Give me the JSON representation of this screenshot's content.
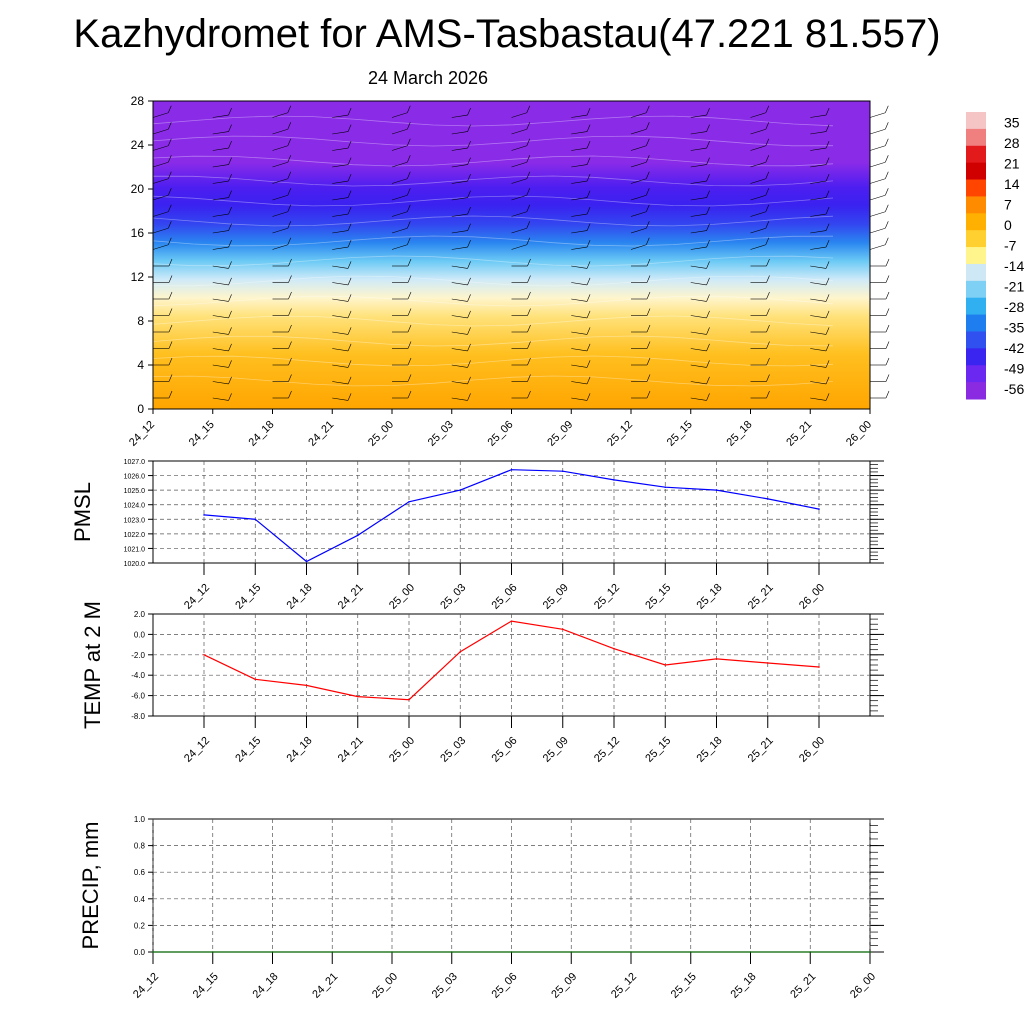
{
  "title": "Kazhydromet for AMS-Tasbastau(47.221 81.557)",
  "subtitle": "24 March 2026",
  "chart_data": [
    {
      "type": "heatmap",
      "name": "vertical cross-section (temperature contours with wind barbs)",
      "categories": [
        "24_12",
        "24_15",
        "24_18",
        "24_21",
        "25_00",
        "25_03",
        "25_06",
        "25_09",
        "25_12",
        "25_15",
        "25_18",
        "25_21",
        "26_00"
      ],
      "ylim": [
        0,
        28
      ],
      "yticks": [
        0,
        4,
        8,
        12,
        16,
        20,
        24,
        28
      ],
      "colorbar": {
        "labels": [
          "35",
          "28",
          "21",
          "14",
          "7",
          "0",
          "-7",
          "-14",
          "-21",
          "-28",
          "-35",
          "-42",
          "-49",
          "-56"
        ],
        "colors": [
          "#f5c4c4",
          "#f08080",
          "#e31a1c",
          "#d00000",
          "#ff4500",
          "#ff8c00",
          "#ffb000",
          "#ffd030",
          "#fff58c",
          "#cfe8f5",
          "#7fd0f5",
          "#30b0f0",
          "#1e7ef0",
          "#3050f0",
          "#3a24f0",
          "#6a28f0",
          "#8a2be2"
        ]
      }
    },
    {
      "type": "line",
      "name": "PMSL",
      "ylabel": "PMSL",
      "categories": [
        "24_12",
        "24_15",
        "24_18",
        "24_21",
        "25_00",
        "25_03",
        "25_06",
        "25_09",
        "25_12",
        "25_15",
        "25_18",
        "25_21",
        "26_00"
      ],
      "values": [
        1023.3,
        1023.0,
        1020.1,
        1021.9,
        1024.2,
        1025.0,
        1026.4,
        1026.3,
        1025.7,
        1025.2,
        1025.0,
        1024.4,
        1023.7
      ],
      "ylim": [
        1020.0,
        1027.0
      ],
      "ytick_labels": [
        "1020.0",
        "1021.0",
        "1022.0",
        "1023.0",
        "1024.0",
        "1025.0",
        "1026.0",
        "1027.0"
      ],
      "color": "#0000ff"
    },
    {
      "type": "line",
      "name": "TEMP at 2 M",
      "ylabel": "TEMP at 2 M",
      "categories": [
        "24_12",
        "24_15",
        "24_18",
        "24_21",
        "25_00",
        "25_03",
        "25_06",
        "25_09",
        "25_12",
        "25_15",
        "25_18",
        "25_21",
        "26_00"
      ],
      "values": [
        -2.0,
        -4.4,
        -5.0,
        -6.1,
        -6.4,
        -1.7,
        1.3,
        0.5,
        -1.4,
        -3.0,
        -2.4,
        -2.8,
        -3.2
      ],
      "ylim": [
        -8.0,
        2.0
      ],
      "ytick_labels": [
        "-8.0",
        "-6.0",
        "-4.0",
        "-2.0",
        "0.0",
        "2.0"
      ],
      "color": "#ff0000"
    },
    {
      "type": "line",
      "name": "PRECIP, mm",
      "ylabel": "PRECIP, mm",
      "categories": [
        "24_12",
        "24_15",
        "24_18",
        "24_21",
        "25_00",
        "25_03",
        "25_06",
        "25_09",
        "25_12",
        "25_15",
        "25_18",
        "25_21",
        "26_00"
      ],
      "values": [
        0,
        0,
        0,
        0,
        0,
        0,
        0,
        0,
        0,
        0,
        0,
        0,
        0
      ],
      "ylim": [
        0.0,
        1.0
      ],
      "ytick_labels": [
        "0.0",
        "0.2",
        "0.4",
        "0.6",
        "0.8",
        "1.0"
      ],
      "color": "#006400"
    }
  ]
}
